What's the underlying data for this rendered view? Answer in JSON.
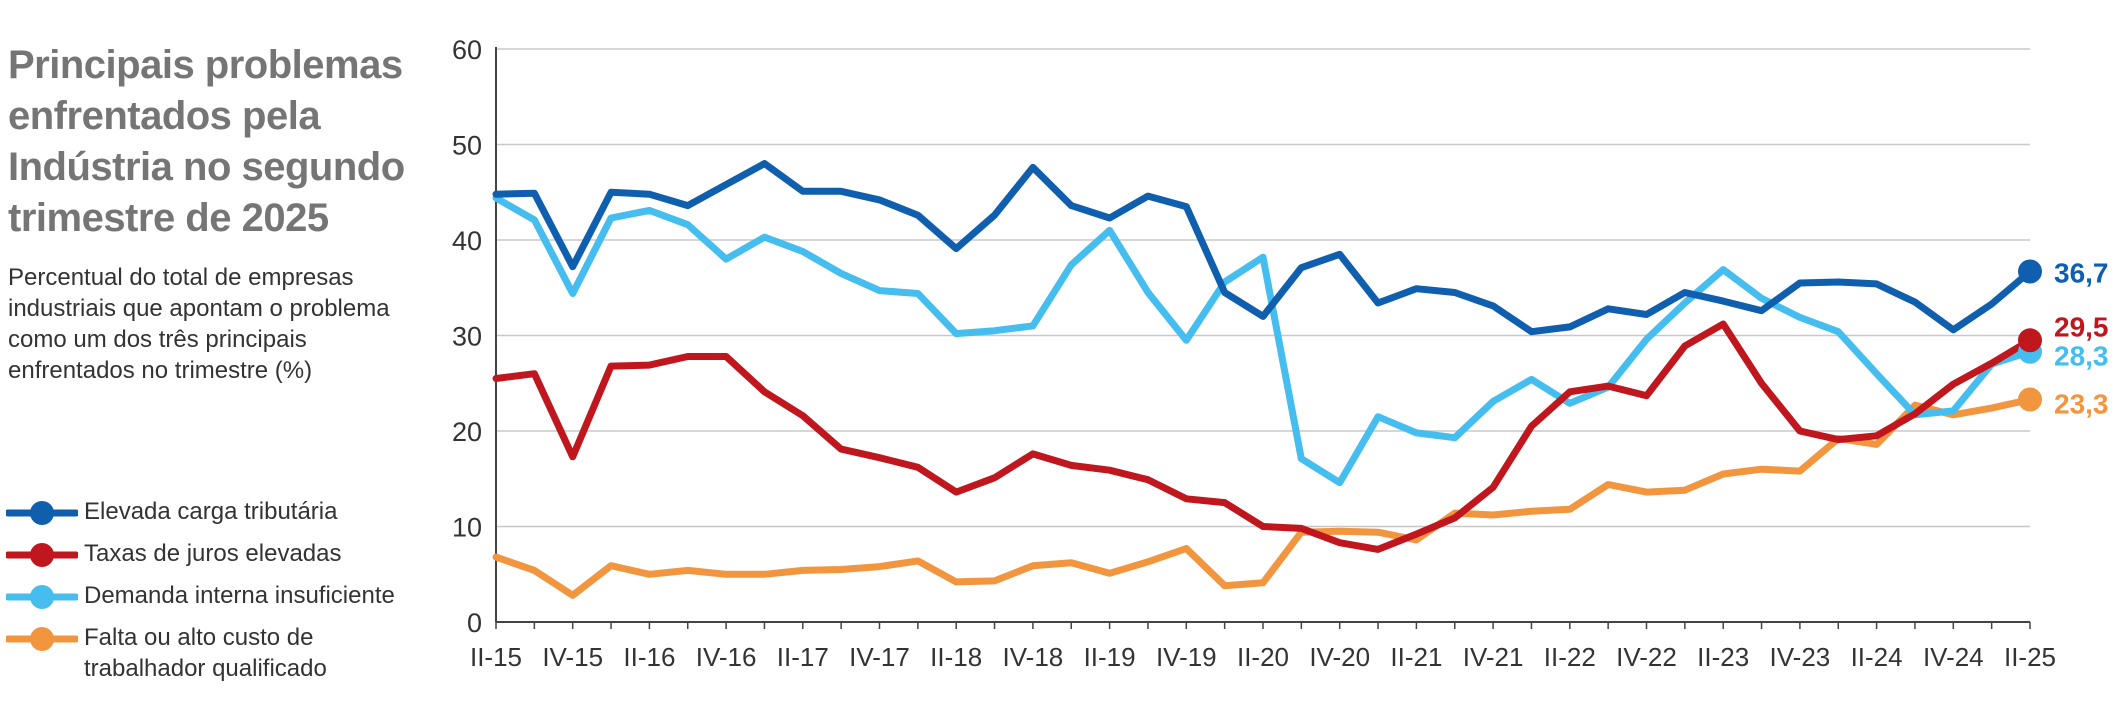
{
  "chart_data": {
    "type": "line",
    "title": "Principais problemas enfrentados pela Indústria no segundo trimestre de 2025",
    "subtitle": "Percentual do total de empresas industriais que apontam o problema como um dos três principais enfrentados no trimestre (%)",
    "xlabel": "",
    "ylabel": "",
    "ylim": [
      0,
      60
    ],
    "yticks": [
      "0",
      "10",
      "20",
      "30",
      "40",
      "50",
      "60"
    ],
    "grid": "horizontal",
    "legend_position": "left",
    "x": [
      "II-15",
      "III-15",
      "IV-15",
      "I-16",
      "II-16",
      "III-16",
      "IV-16",
      "I-17",
      "II-17",
      "III-17",
      "IV-17",
      "I-18",
      "II-18",
      "III-18",
      "IV-18",
      "I-19",
      "II-19",
      "III-19",
      "IV-19",
      "I-20",
      "II-20",
      "III-20",
      "IV-20",
      "I-21",
      "II-21",
      "III-21",
      "IV-21",
      "I-22",
      "II-22",
      "III-22",
      "IV-22",
      "I-23",
      "II-23",
      "III-23",
      "IV-23",
      "I-24",
      "II-24",
      "III-24",
      "IV-24",
      "I-25",
      "II-25"
    ],
    "xtick_labels": [
      "II-15",
      "IV-15",
      "II-16",
      "IV-16",
      "II-17",
      "IV-17",
      "II-18",
      "IV-18",
      "II-19",
      "IV-19",
      "II-20",
      "IV-20",
      "II-21",
      "IV-21",
      "II-22",
      "IV-22",
      "II-23",
      "IV-23",
      "II-24",
      "IV-24",
      "II-25"
    ],
    "series": [
      {
        "name": "Elevada carga tributária",
        "color": "#0f5fae",
        "end_label": "36,7",
        "values": [
          44.8,
          44.9,
          37.2,
          45.0,
          44.8,
          43.6,
          45.8,
          48.0,
          45.1,
          45.1,
          44.2,
          42.6,
          39.1,
          42.6,
          47.6,
          43.6,
          42.3,
          44.6,
          43.5,
          34.5,
          32.0,
          37.1,
          38.5,
          33.4,
          34.9,
          34.5,
          33.1,
          30.4,
          30.9,
          32.8,
          32.2,
          34.5,
          33.6,
          32.6,
          35.5,
          35.6,
          35.4,
          33.5,
          30.6,
          33.3,
          36.7
        ]
      },
      {
        "name": "Taxas de juros elevadas",
        "color": "#c0161e",
        "end_label": "29,5",
        "values": [
          25.5,
          26.0,
          17.3,
          26.8,
          26.9,
          27.8,
          27.8,
          24.1,
          21.6,
          18.1,
          17.2,
          16.2,
          13.6,
          15.1,
          17.6,
          16.4,
          15.9,
          14.9,
          12.9,
          12.5,
          10.0,
          9.8,
          8.3,
          7.6,
          9.2,
          10.9,
          14.1,
          20.5,
          24.1,
          24.7,
          23.7,
          28.9,
          31.2,
          25.0,
          20.0,
          19.1,
          19.5,
          21.8,
          24.9,
          27.1,
          29.5
        ]
      },
      {
        "name": "Demanda interna insuficiente",
        "color": "#45bdee",
        "end_label": "28,3",
        "values": [
          44.4,
          42.1,
          34.4,
          42.3,
          43.1,
          41.6,
          38.0,
          40.3,
          38.8,
          36.5,
          34.7,
          34.4,
          30.2,
          30.5,
          31.0,
          37.4,
          41.0,
          34.5,
          29.5,
          35.6,
          38.2,
          17.1,
          14.6,
          21.5,
          19.8,
          19.3,
          23.1,
          25.4,
          22.9,
          24.6,
          29.6,
          33.4,
          36.9,
          33.9,
          31.9,
          30.4,
          26.0,
          21.7,
          22.1,
          27.0,
          28.3
        ]
      },
      {
        "name": "Falta ou alto custo de trabalhador qualificado",
        "color": "#f2953f",
        "end_label": "23,3",
        "values": [
          6.8,
          5.4,
          2.8,
          5.9,
          5.0,
          5.4,
          5.0,
          5.0,
          5.4,
          5.5,
          5.8,
          6.4,
          4.2,
          4.3,
          5.9,
          6.2,
          5.1,
          6.3,
          7.7,
          3.8,
          4.1,
          9.4,
          9.5,
          9.4,
          8.6,
          11.4,
          11.2,
          11.6,
          11.8,
          14.4,
          13.6,
          13.8,
          15.5,
          16.0,
          15.8,
          19.2,
          18.6,
          22.7,
          21.7,
          22.4,
          23.3
        ]
      }
    ]
  }
}
